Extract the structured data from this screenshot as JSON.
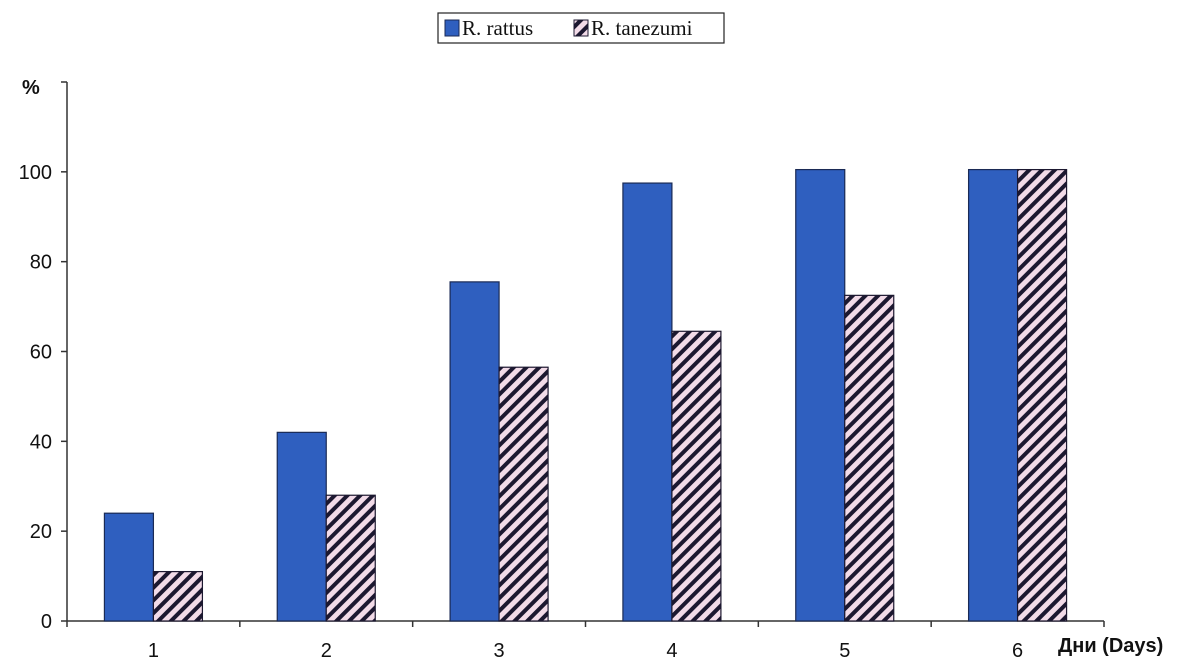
{
  "chart_data": {
    "type": "bar",
    "categories": [
      "1",
      "2",
      "3",
      "4",
      "5",
      "6"
    ],
    "series": [
      {
        "name": "R. rattus",
        "values": [
          24,
          42,
          75.5,
          97.5,
          100.5,
          100.5
        ],
        "pattern": "solid"
      },
      {
        "name": "R. tanezumi",
        "values": [
          11,
          28,
          56.5,
          64.5,
          72.5,
          100.5
        ],
        "pattern": "hatched"
      }
    ],
    "ylabel": "%",
    "xlabel": "Дни (Days)",
    "ylim": [
      0,
      120
    ],
    "yticks": [
      0,
      20,
      40,
      60,
      80,
      100
    ],
    "grid": false,
    "legend_position": "top-center",
    "colors": {
      "rattus_fill": "#2f5fbf",
      "rattus_stroke": "#1a2a55",
      "tanezumi_stripe_a": "#f2dbe8",
      "tanezumi_stripe_b": "#1c1830",
      "axis": "#333333"
    }
  }
}
